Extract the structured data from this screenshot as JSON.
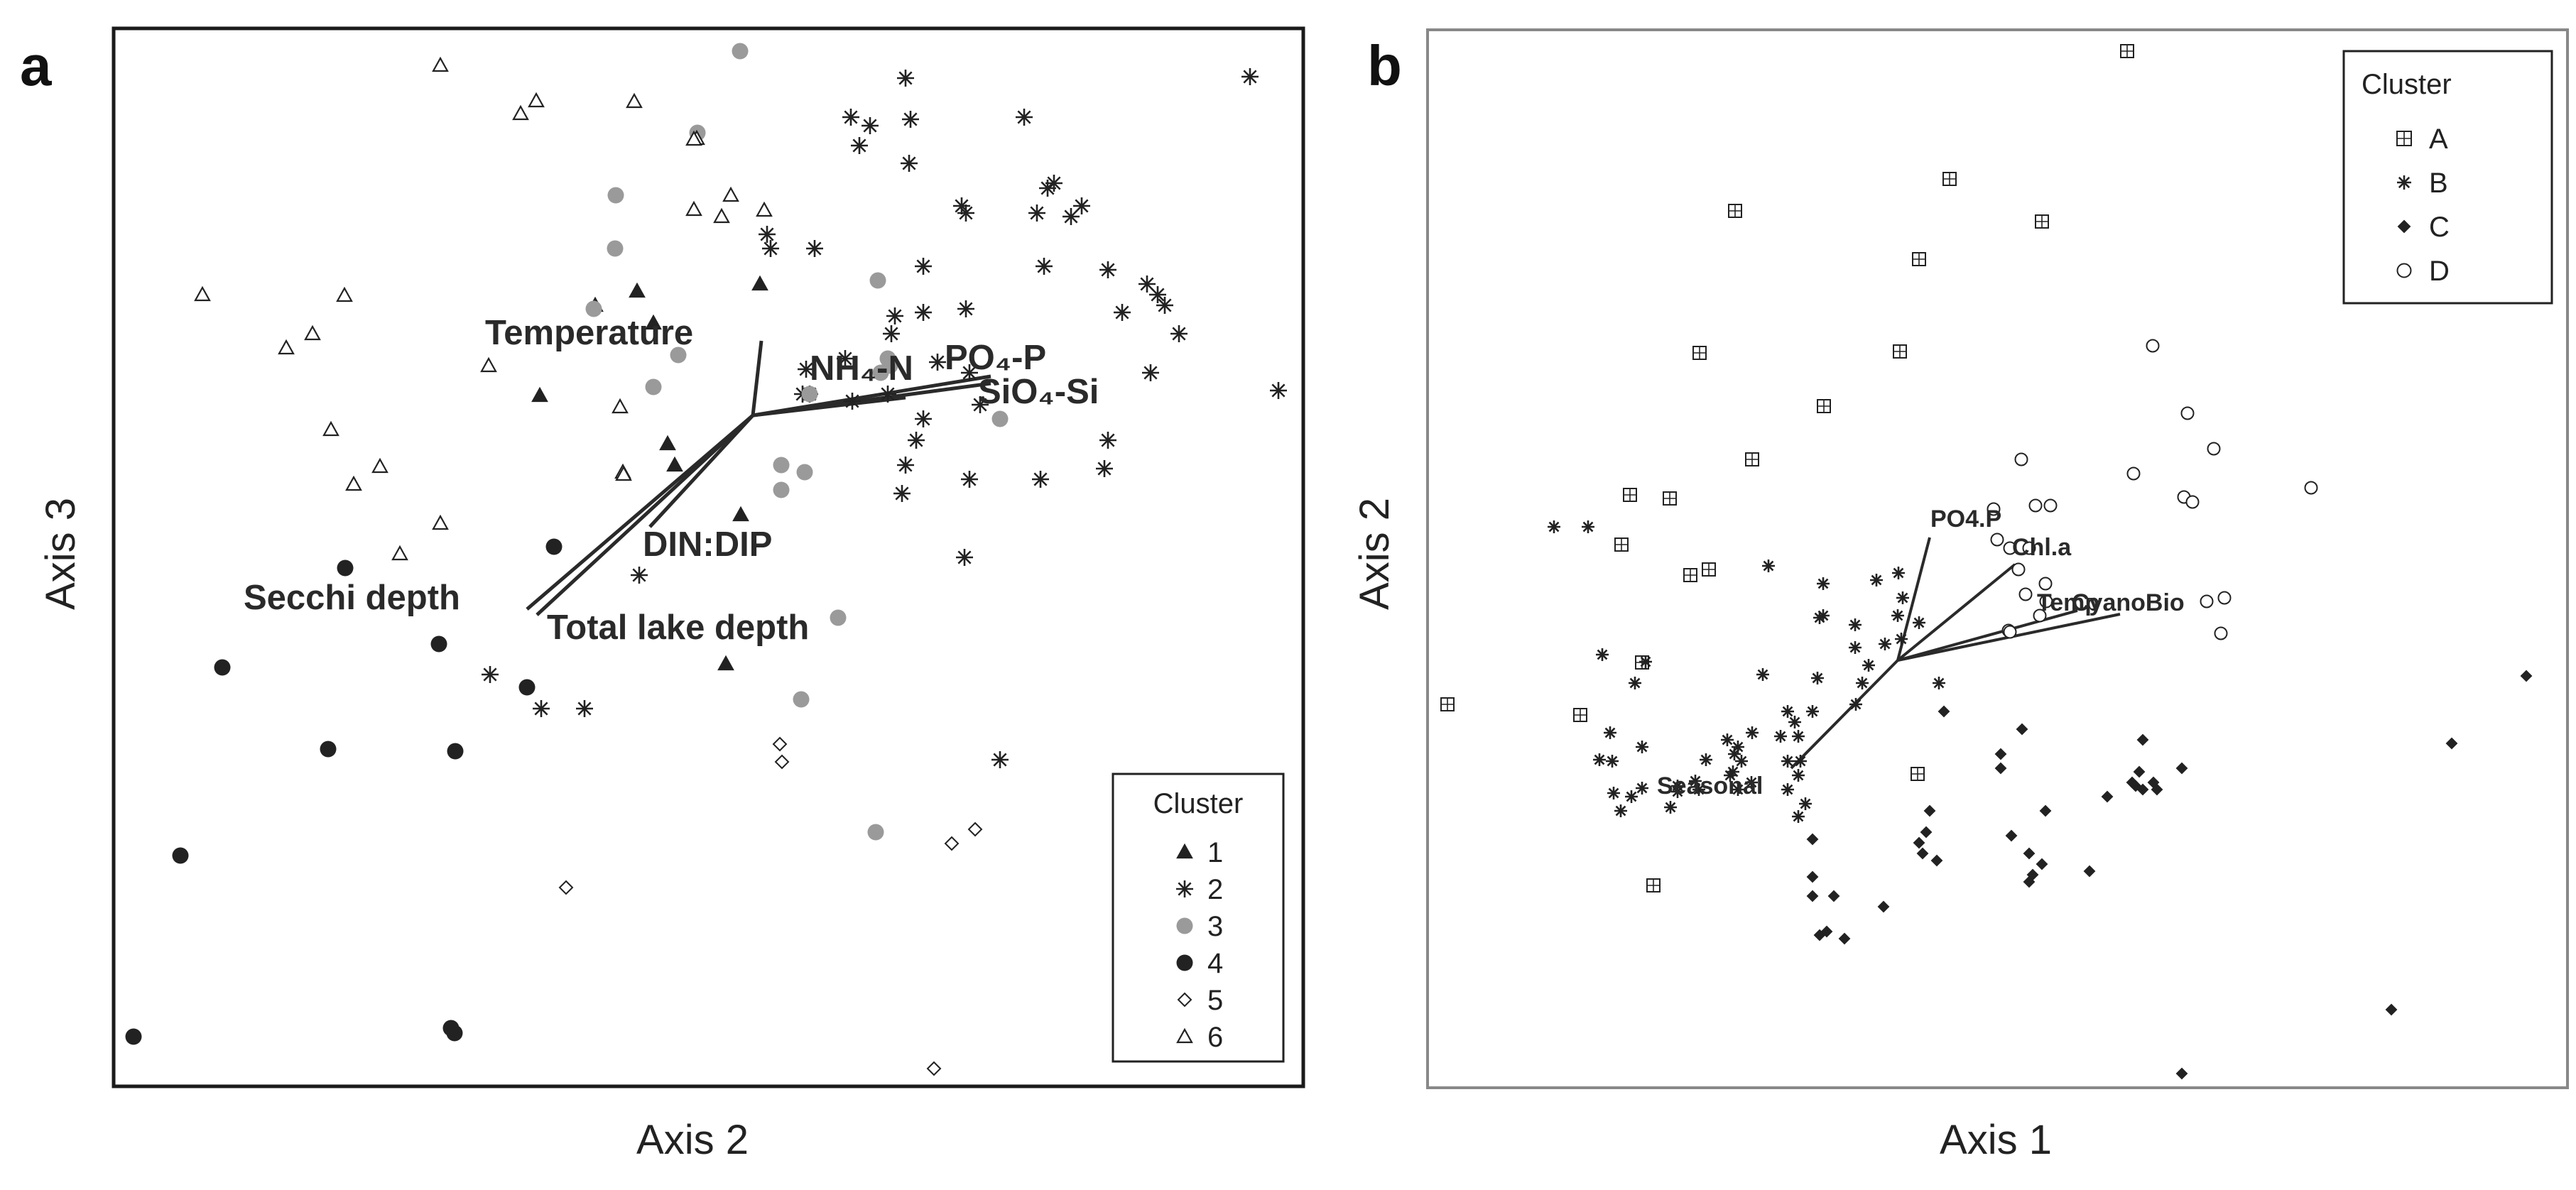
{
  "chart_data": [
    {
      "panel": "a",
      "type": "scatter",
      "xlabel": "Axis 2",
      "ylabel": "Axis 3",
      "legend": {
        "title": "Cluster",
        "position": "bottom-right"
      },
      "colors": {
        "frame": "#1a1a1a",
        "dark": "#222222",
        "grey": "#9a9a9a"
      },
      "series": [
        {
          "name": "1",
          "marker": "triangle-filled",
          "points": [
            [
              838,
              430
            ],
            [
              897,
              410
            ],
            [
              1070,
              400
            ],
            [
              920,
              455
            ],
            [
              760,
              557
            ],
            [
              940,
              625
            ],
            [
              950,
              655
            ],
            [
              1043,
              725
            ],
            [
              1022,
              935
            ]
          ]
        },
        {
          "name": "2",
          "marker": "asterisk",
          "points": [
            [
              1275,
              110
            ],
            [
              1760,
              108
            ],
            [
              1198,
              165
            ],
            [
              1225,
              177
            ],
            [
              1210,
              205
            ],
            [
              1282,
              168
            ],
            [
              1442,
              165
            ],
            [
              1280,
              230
            ],
            [
              1354,
              290
            ],
            [
              1484,
              258
            ],
            [
              1460,
              300
            ],
            [
              1523,
              290
            ],
            [
              1475,
              265
            ],
            [
              1508,
              305
            ],
            [
              1470,
              375
            ],
            [
              1300,
              375
            ],
            [
              1300,
              440
            ],
            [
              1360,
              435
            ],
            [
              1260,
              445
            ],
            [
              1615,
              400
            ],
            [
              1630,
              415
            ],
            [
              1640,
              430
            ],
            [
              1580,
              440
            ],
            [
              1660,
              470
            ],
            [
              1190,
              505
            ],
            [
              1255,
              470
            ],
            [
              1320,
              510
            ],
            [
              1620,
              525
            ],
            [
              1365,
              525
            ],
            [
              1135,
              520
            ],
            [
              1800,
              550
            ],
            [
              1250,
              555
            ],
            [
              1200,
              565
            ],
            [
              1380,
              570
            ],
            [
              1300,
              590
            ],
            [
              1130,
              555
            ],
            [
              1290,
              620
            ],
            [
              1560,
              620
            ],
            [
              1555,
              660
            ],
            [
              1275,
              655
            ],
            [
              1270,
              695
            ],
            [
              1365,
              675
            ],
            [
              1465,
              675
            ],
            [
              1358,
              785
            ],
            [
              1140,
              555
            ],
            [
              1147,
              350
            ],
            [
              1085,
              350
            ],
            [
              1080,
              330
            ],
            [
              1360,
              300
            ],
            [
              1560,
              380
            ],
            [
              900,
              810
            ],
            [
              690,
              950
            ],
            [
              762,
              998
            ],
            [
              823,
              998
            ],
            [
              1408,
              1070
            ]
          ]
        },
        {
          "name": "3",
          "marker": "circle-grey",
          "points": [
            [
              1042,
              72
            ],
            [
              982,
              187
            ],
            [
              867,
              275
            ],
            [
              866,
              350
            ],
            [
              836,
              435
            ],
            [
              955,
              500
            ],
            [
              920,
              545
            ],
            [
              1236,
              395
            ],
            [
              1250,
              505
            ],
            [
              1253,
              515
            ],
            [
              1240,
              525
            ],
            [
              1140,
              555
            ],
            [
              1408,
              590
            ],
            [
              1100,
              655
            ],
            [
              1133,
              665
            ],
            [
              1100,
              690
            ],
            [
              1180,
              870
            ],
            [
              1128,
              985
            ],
            [
              1233,
              1172
            ]
          ]
        },
        {
          "name": "4",
          "marker": "circle-filled",
          "points": [
            [
              780,
              770
            ],
            [
              486,
              800
            ],
            [
              618,
              907
            ],
            [
              313,
              940
            ],
            [
              462,
              1055
            ],
            [
              641,
              1058
            ],
            [
              742,
              968
            ],
            [
              254,
              1205
            ],
            [
              188,
              1460
            ],
            [
              635,
              1448
            ],
            [
              640,
              1455
            ]
          ]
        },
        {
          "name": "5",
          "marker": "diamond-open",
          "points": [
            [
              1098,
              1048
            ],
            [
              1101,
              1073
            ],
            [
              1373,
              1168
            ],
            [
              1340,
              1188
            ],
            [
              797,
              1250
            ],
            [
              1315,
              1505
            ]
          ]
        },
        {
          "name": "6",
          "marker": "triangle-open",
          "points": [
            [
              620,
              92
            ],
            [
              755,
              142
            ],
            [
              733,
              160
            ],
            [
              893,
              143
            ],
            [
              981,
              195
            ],
            [
              1076,
              296
            ],
            [
              977,
              295
            ],
            [
              1016,
              305
            ],
            [
              285,
              415
            ],
            [
              485,
              416
            ],
            [
              403,
              490
            ],
            [
              440,
              470
            ],
            [
              977,
              196
            ],
            [
              688,
              515
            ],
            [
              873,
              573
            ],
            [
              466,
              605
            ],
            [
              498,
              682
            ],
            [
              535,
              657
            ],
            [
              877,
              665
            ],
            [
              1029,
              275
            ],
            [
              878,
              668
            ],
            [
              563,
              780
            ],
            [
              620,
              737
            ]
          ]
        }
      ],
      "vectors": [
        {
          "label": "Temperature"
        },
        {
          "label": "NH₄-N"
        },
        {
          "label": "PO₄-P"
        },
        {
          "label": "SiO₄-Si"
        },
        {
          "label": "DIN:DIP"
        },
        {
          "label": "Secchi depth"
        },
        {
          "label": "Total lake depth"
        }
      ]
    },
    {
      "panel": "b",
      "type": "scatter",
      "xlabel": "Axis 1",
      "ylabel": "Axis 2",
      "legend": {
        "title": "Cluster",
        "position": "top-right"
      },
      "colors": {
        "frame": "#888888",
        "dark": "#222222"
      },
      "series": [
        {
          "name": "A",
          "marker": "square-cross",
          "points": [
            [
              2995,
              72
            ],
            [
              2745,
              252
            ],
            [
              2443,
              297
            ],
            [
              2875,
              312
            ],
            [
              2702,
              365
            ],
            [
              2393,
              497
            ],
            [
              2675,
              495
            ],
            [
              2568,
              572
            ],
            [
              2467,
              647
            ],
            [
              2295,
              697
            ],
            [
              2351,
              702
            ],
            [
              2283,
              767
            ],
            [
              2406,
              802
            ],
            [
              2380,
              810
            ],
            [
              2225,
              1007
            ],
            [
              2328,
              1247
            ],
            [
              2038,
              992
            ],
            [
              2700,
              1090
            ],
            [
              2312,
              933
            ]
          ]
        },
        {
          "name": "B",
          "marker": "asterisk",
          "points": [
            [
              2188,
              742
            ],
            [
              2236,
              742
            ],
            [
              2490,
              797
            ],
            [
              2642,
              817
            ],
            [
              2673,
              807
            ],
            [
              2567,
              822
            ],
            [
              2679,
              842
            ],
            [
              2672,
              867
            ],
            [
              2612,
              880
            ],
            [
              2562,
              870
            ],
            [
              2567,
              867
            ],
            [
              2702,
              877
            ],
            [
              2654,
              907
            ],
            [
              2677,
              900
            ],
            [
              2612,
              912
            ],
            [
              2631,
              937
            ],
            [
              2730,
              962
            ],
            [
              2622,
              962
            ],
            [
              2613,
              992
            ],
            [
              2256,
              922
            ],
            [
              2317,
              932
            ],
            [
              2302,
              962
            ],
            [
              2482,
              950
            ],
            [
              2559,
              955
            ],
            [
              2552,
              1002
            ],
            [
              2527,
              1017
            ],
            [
              2532,
              1037
            ],
            [
              2467,
              1032
            ],
            [
              2507,
              1037
            ],
            [
              2432,
              1042
            ],
            [
              2442,
              1062
            ],
            [
              2517,
              1072
            ],
            [
              2452,
              1072
            ],
            [
              2517,
              1002
            ],
            [
              2535,
              1072
            ],
            [
              2436,
              1092
            ],
            [
              2466,
              1102
            ],
            [
              2447,
              1112
            ],
            [
              2532,
              1092
            ],
            [
              2517,
              1112
            ],
            [
              2312,
              1052
            ],
            [
              2267,
              1032
            ],
            [
              2312,
              1110
            ],
            [
              2272,
              1117
            ],
            [
              2282,
              1142
            ],
            [
              2297,
              1122
            ],
            [
              2387,
              1100
            ],
            [
              2402,
              1070
            ],
            [
              2362,
              1115
            ],
            [
              2252,
              1070
            ],
            [
              2270,
              1072
            ],
            [
              2542,
              1132
            ],
            [
              2532,
              1150
            ],
            [
              2352,
              1137
            ],
            [
              2362,
              1107
            ],
            [
              2392,
              1112
            ],
            [
              2440,
              1087
            ],
            [
              2447,
              1052
            ]
          ]
        },
        {
          "name": "C",
          "marker": "diamond-filled",
          "points": [
            [
              3557,
              952
            ],
            [
              3452,
              1047
            ],
            [
              2737,
              1002
            ],
            [
              2847,
              1027
            ],
            [
              3017,
              1042
            ],
            [
              3012,
              1087
            ],
            [
              2817,
              1062
            ],
            [
              2817,
              1082
            ],
            [
              3072,
              1082
            ],
            [
              3032,
              1102
            ],
            [
              3002,
              1102
            ],
            [
              3007,
              1107
            ],
            [
              3037,
              1112
            ],
            [
              3017,
              1112
            ],
            [
              2967,
              1122
            ],
            [
              2880,
              1142
            ],
            [
              2717,
              1142
            ],
            [
              2712,
              1172
            ],
            [
              2702,
              1187
            ],
            [
              2707,
              1202
            ],
            [
              2727,
              1212
            ],
            [
              2832,
              1177
            ],
            [
              2857,
              1202
            ],
            [
              2875,
              1217
            ],
            [
              2862,
              1232
            ],
            [
              2857,
              1242
            ],
            [
              2942,
              1227
            ],
            [
              2552,
              1182
            ],
            [
              2552,
              1235
            ],
            [
              2552,
              1262
            ],
            [
              2582,
              1262
            ],
            [
              2652,
              1277
            ],
            [
              2572,
              1312
            ],
            [
              2562,
              1317
            ],
            [
              2597,
              1322
            ],
            [
              3367,
              1422
            ],
            [
              3072,
              1512
            ]
          ]
        },
        {
          "name": "D",
          "marker": "circle-open",
          "points": [
            [
              3031,
              487
            ],
            [
              3080,
              582
            ],
            [
              3117,
              632
            ],
            [
              2846,
              647
            ],
            [
              3004,
              667
            ],
            [
              3075,
              700
            ],
            [
              3087,
              707
            ],
            [
              3254,
              687
            ],
            [
              2866,
              712
            ],
            [
              2887,
              712
            ],
            [
              2807,
              717
            ],
            [
              2812,
              760
            ],
            [
              2830,
              772
            ],
            [
              2857,
              772
            ],
            [
              2842,
              802
            ],
            [
              2880,
              822
            ],
            [
              3107,
              847
            ],
            [
              3132,
              842
            ],
            [
              3127,
              892
            ],
            [
              2881,
              847
            ],
            [
              2872,
              867
            ],
            [
              2852,
              837
            ],
            [
              2828,
              888
            ],
            [
              2830,
              890
            ]
          ]
        }
      ],
      "vectors": [
        {
          "label": "PO4.P"
        },
        {
          "label": "Chl.a"
        },
        {
          "label": "Temp"
        },
        {
          "label": "CyanoBio"
        },
        {
          "label": "Seasonal"
        }
      ]
    }
  ]
}
